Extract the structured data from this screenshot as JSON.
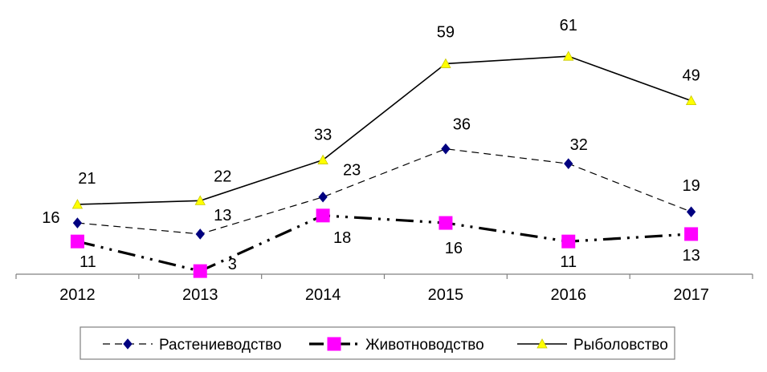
{
  "chart_data": {
    "type": "line",
    "categories": [
      "2012",
      "2013",
      "2014",
      "2015",
      "2016",
      "2017"
    ],
    "series": [
      {
        "name": "Растениеводство",
        "values": [
          16,
          13,
          23,
          36,
          32,
          19
        ],
        "color": "#000080",
        "marker": "diamond",
        "line_style": "dashed"
      },
      {
        "name": "Животноводство",
        "values": [
          11,
          3,
          18,
          16,
          11,
          13
        ],
        "color": "#FF00FF",
        "marker": "square",
        "line_style": "dash-dot-dot"
      },
      {
        "name": "Рыболовство",
        "values": [
          21,
          22,
          33,
          59,
          61,
          49
        ],
        "color": "#FFFF00",
        "marker": "triangle",
        "line_style": "solid"
      }
    ],
    "ylim": [
      0,
      65
    ],
    "grid": false,
    "legend_position": "bottom",
    "data_labels": true,
    "title": "",
    "xlabel": "",
    "ylabel": ""
  }
}
